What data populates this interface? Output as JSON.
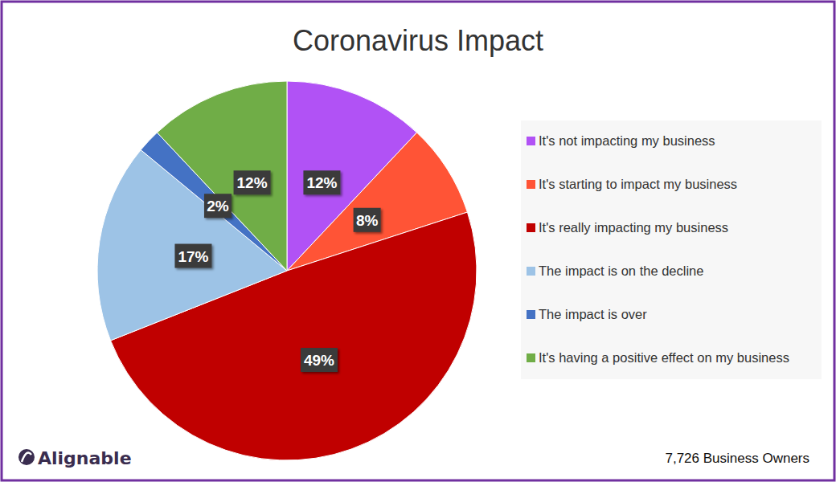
{
  "chart_data": {
    "type": "pie",
    "title": "Coronavirus Impact",
    "categories": [
      "It's not impacting my business",
      "It's starting to impact my business",
      "It's really impacting my business",
      "The impact is on the decline",
      "The impact is over",
      "It's having a positive effect on my business"
    ],
    "values": [
      12,
      8,
      49,
      17,
      2,
      12
    ],
    "value_labels": [
      "12%",
      "8%",
      "49%",
      "17%",
      "2%",
      "12%"
    ],
    "colors": [
      "#b152f5",
      "#ff5436",
      "#c00000",
      "#9dc3e6",
      "#4472c4",
      "#70ad47"
    ],
    "data_labels": true,
    "legend": "right",
    "logo": "Alignable",
    "footnote": "7,726 Business Owners"
  }
}
